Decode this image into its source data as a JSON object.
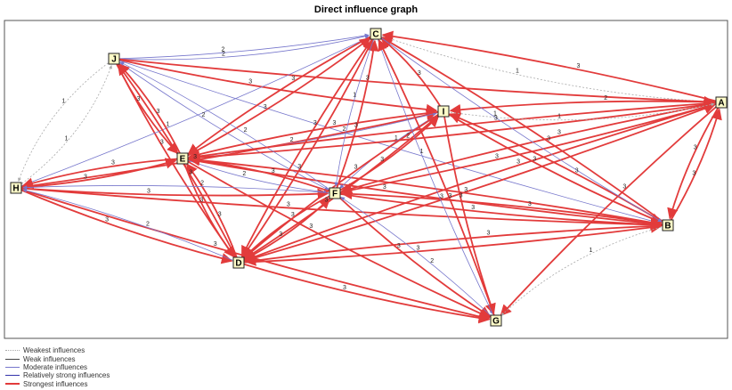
{
  "title": "Direct influence graph",
  "legend": [
    {
      "label": "Weakest influences",
      "level": 1
    },
    {
      "label": "Weak influences",
      "level": 2
    },
    {
      "label": "Moderate influences",
      "level": 3
    },
    {
      "label": "Relatively strong influences",
      "level": 4
    },
    {
      "label": "Strongest influences",
      "level": 5
    }
  ],
  "styles": {
    "1": {
      "color": "#a9a9a9",
      "dash": "2,2"
    },
    "2": {
      "color": "#444444",
      "dash": ""
    },
    "3": {
      "color": "#7777cc",
      "dash": ""
    },
    "4": {
      "color": "#3333aa",
      "dash": ""
    },
    "5": {
      "color": "#e23b3b",
      "dash": ""
    }
  },
  "nodes": [
    {
      "id": "C"
    },
    {
      "id": "J"
    },
    {
      "id": "I"
    },
    {
      "id": "A"
    },
    {
      "id": "E"
    },
    {
      "id": "H"
    },
    {
      "id": "F"
    },
    {
      "id": "B"
    },
    {
      "id": "D"
    },
    {
      "id": "G"
    }
  ],
  "edges": [
    {
      "from": "J",
      "to": "C",
      "label": "2",
      "level": 3
    },
    {
      "from": "J",
      "to": "C",
      "label": "2",
      "level": 3
    },
    {
      "from": "C",
      "to": "A",
      "label": "1",
      "level": 1
    },
    {
      "from": "J",
      "to": "A",
      "label": "3",
      "level": 5
    },
    {
      "from": "J",
      "to": "I",
      "label": "3",
      "level": 5
    },
    {
      "from": "J",
      "to": "E",
      "label": "3",
      "level": 5
    },
    {
      "from": "J",
      "to": "D",
      "label": "3",
      "level": 5
    },
    {
      "from": "J",
      "to": "F",
      "label": "2",
      "level": 3
    },
    {
      "from": "J",
      "to": "B",
      "label": "2",
      "level": 3
    },
    {
      "from": "J",
      "to": "H",
      "label": "1",
      "level": 1
    },
    {
      "from": "H",
      "to": "J",
      "label": "1",
      "level": 1
    },
    {
      "from": "H",
      "to": "C",
      "label": "1",
      "level": 3
    },
    {
      "from": "H",
      "to": "E",
      "label": "3",
      "level": 5
    },
    {
      "from": "H",
      "to": "I",
      "label": "3",
      "level": 5
    },
    {
      "from": "H",
      "to": "F",
      "label": "3",
      "level": 5
    },
    {
      "from": "H",
      "to": "D",
      "label": "3",
      "level": 5
    },
    {
      "from": "H",
      "to": "G",
      "label": "3",
      "level": 5
    },
    {
      "from": "H",
      "to": "B",
      "label": "3",
      "level": 5
    },
    {
      "from": "E",
      "to": "C",
      "label": "3",
      "level": 5
    },
    {
      "from": "E",
      "to": "I",
      "label": "2",
      "level": 3
    },
    {
      "from": "E",
      "to": "A",
      "label": "2",
      "level": 5
    },
    {
      "from": "E",
      "to": "B",
      "label": "3",
      "level": 5
    },
    {
      "from": "E",
      "to": "G",
      "label": "3",
      "level": 5
    },
    {
      "from": "E",
      "to": "D",
      "label": "3",
      "level": 5
    },
    {
      "from": "E",
      "to": "J",
      "label": "3",
      "level": 5
    },
    {
      "from": "E",
      "to": "F",
      "label": "2",
      "level": 3
    },
    {
      "from": "F",
      "to": "C",
      "label": "3",
      "level": 5
    },
    {
      "from": "F",
      "to": "I",
      "label": "3",
      "level": 5
    },
    {
      "from": "F",
      "to": "A",
      "label": "3",
      "level": 5
    },
    {
      "from": "F",
      "to": "B",
      "label": "3",
      "level": 5
    },
    {
      "from": "F",
      "to": "G",
      "label": "3",
      "level": 5
    },
    {
      "from": "F",
      "to": "D",
      "label": "3",
      "level": 5
    },
    {
      "from": "F",
      "to": "J",
      "label": "2",
      "level": 3
    },
    {
      "from": "F",
      "to": "E",
      "label": "3",
      "level": 5
    },
    {
      "from": "D",
      "to": "C",
      "label": "3",
      "level": 5
    },
    {
      "from": "D",
      "to": "I",
      "label": "3",
      "level": 5
    },
    {
      "from": "D",
      "to": "A",
      "label": "3",
      "level": 5
    },
    {
      "from": "D",
      "to": "B",
      "label": "3",
      "level": 5
    },
    {
      "from": "D",
      "to": "G",
      "label": "3",
      "level": 5
    },
    {
      "from": "D",
      "to": "E",
      "label": "3",
      "level": 5
    },
    {
      "from": "D",
      "to": "F",
      "label": "3",
      "level": 5
    },
    {
      "from": "D",
      "to": "J",
      "label": "3",
      "level": 5
    },
    {
      "from": "A",
      "to": "C",
      "label": "3",
      "level": 5
    },
    {
      "from": "A",
      "to": "I",
      "label": "2",
      "level": 5
    },
    {
      "from": "A",
      "to": "E",
      "label": "3",
      "level": 5
    },
    {
      "from": "A",
      "to": "F",
      "label": "3",
      "level": 5
    },
    {
      "from": "A",
      "to": "D",
      "label": "3",
      "level": 5
    },
    {
      "from": "A",
      "to": "G",
      "label": "3",
      "level": 5
    },
    {
      "from": "A",
      "to": "B",
      "label": "3",
      "level": 5
    },
    {
      "from": "B",
      "to": "C",
      "label": "3",
      "level": 5
    },
    {
      "from": "B",
      "to": "I",
      "label": "3",
      "level": 5
    },
    {
      "from": "B",
      "to": "E",
      "label": "3",
      "level": 5
    },
    {
      "from": "B",
      "to": "D",
      "label": "3",
      "level": 5
    },
    {
      "from": "B",
      "to": "F",
      "label": "3",
      "level": 5
    },
    {
      "from": "B",
      "to": "G",
      "label": "1",
      "level": 1
    },
    {
      "from": "B",
      "to": "A",
      "label": "3",
      "level": 5
    },
    {
      "from": "I",
      "to": "C",
      "label": "3",
      "level": 5
    },
    {
      "from": "I",
      "to": "E",
      "label": "3",
      "level": 5
    },
    {
      "from": "I",
      "to": "F",
      "label": "1",
      "level": 3
    },
    {
      "from": "I",
      "to": "D",
      "label": "3",
      "level": 5
    },
    {
      "from": "I",
      "to": "G",
      "label": "3",
      "level": 5
    },
    {
      "from": "I",
      "to": "B",
      "label": "3",
      "level": 5
    },
    {
      "from": "I",
      "to": "A",
      "label": "1",
      "level": 1
    },
    {
      "from": "C",
      "to": "E",
      "label": "3",
      "level": 5
    },
    {
      "from": "C",
      "to": "D",
      "label": "3",
      "level": 5
    },
    {
      "from": "C",
      "to": "G",
      "label": "1",
      "level": 3
    },
    {
      "from": "C",
      "to": "F",
      "label": "1",
      "level": 3
    },
    {
      "from": "C",
      "to": "B",
      "label": "1",
      "level": 3
    },
    {
      "from": "G",
      "to": "C",
      "label": "3",
      "level": 5
    },
    {
      "from": "G",
      "to": "F",
      "label": "2",
      "level": 3
    },
    {
      "from": "D",
      "to": "H",
      "label": "2",
      "level": 3
    },
    {
      "from": "E",
      "to": "H",
      "label": "3",
      "level": 5
    },
    {
      "from": "F",
      "to": "H",
      "label": "2",
      "level": 3
    }
  ]
}
